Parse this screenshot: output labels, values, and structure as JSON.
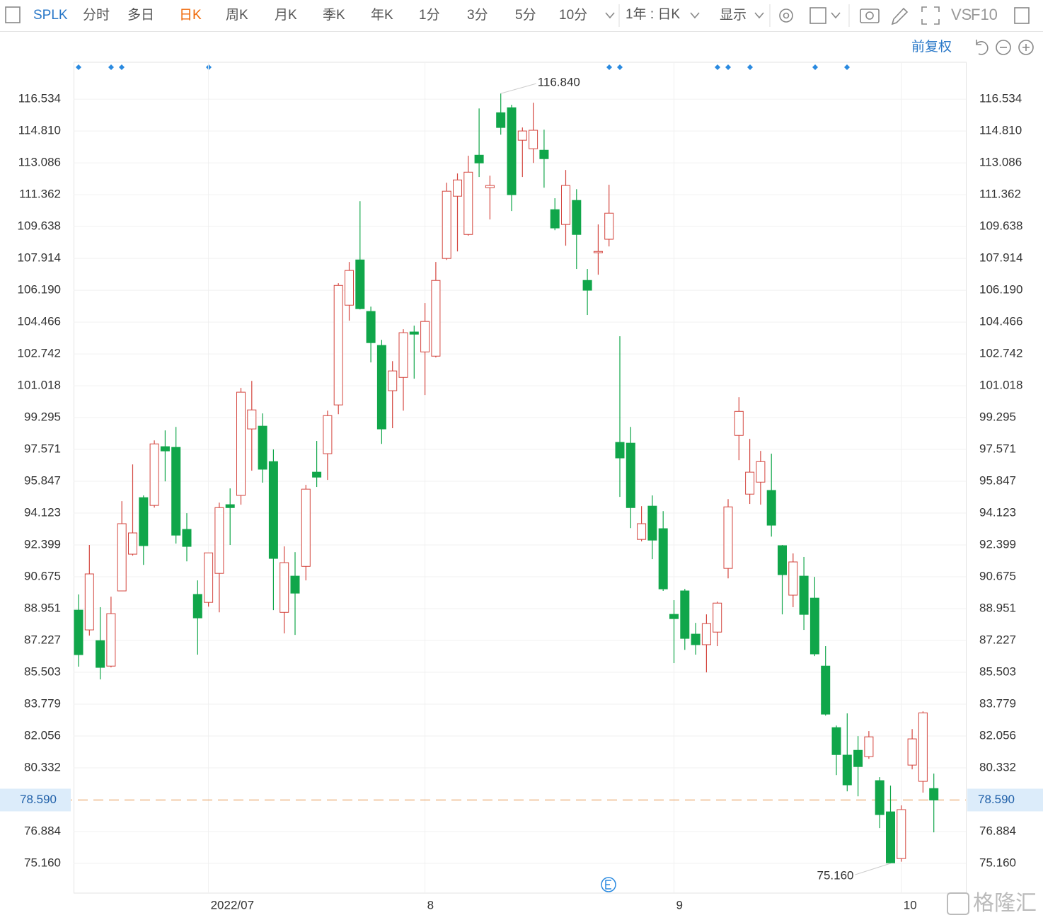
{
  "toolbar": {
    "symbol": "SPLK",
    "periods": [
      "分时",
      "多日",
      "日K",
      "周K",
      "月K",
      "季K",
      "年K",
      "1分",
      "3分",
      "5分",
      "10分"
    ],
    "range_select": "1年 : 日K",
    "display": "显示",
    "compare": "VS",
    "f10": "F10",
    "adjust": "前复权"
  },
  "watermark": "格隆汇",
  "chart_data": {
    "type": "candlestick",
    "categories": [
      null,
      null,
      null,
      null,
      null,
      null,
      null,
      null,
      null,
      null,
      null,
      null,
      "2022/07",
      null,
      null,
      null,
      null,
      null,
      null,
      null,
      null,
      null,
      null,
      null,
      null,
      null,
      null,
      null,
      null,
      null,
      null,
      null,
      "8",
      null,
      null,
      null,
      null,
      null,
      null,
      null,
      null,
      null,
      null,
      null,
      null,
      null,
      null,
      null,
      null,
      null,
      null,
      null,
      null,
      null,
      null,
      "9",
      null,
      null,
      null,
      null,
      null,
      null,
      null,
      null,
      null,
      null,
      null,
      null,
      null,
      null,
      null,
      null,
      null,
      null,
      null,
      null,
      "10",
      null,
      null,
      null
    ],
    "open": [
      88.87,
      87.8,
      87.22,
      85.84,
      89.91,
      91.9,
      94.96,
      94.54,
      97.72,
      97.68,
      93.24,
      89.72,
      89.29,
      90.86,
      94.58,
      95.08,
      98.68,
      98.83,
      96.91,
      88.75,
      90.71,
      91.24,
      96.34,
      97.34,
      99.98,
      105.38,
      107.83,
      105.04,
      103.2,
      100.75,
      101.47,
      103.93,
      102.85,
      102.62,
      107.91,
      111.28,
      109.21,
      113.5,
      111.74,
      115.8,
      116.07,
      114.31,
      113.85,
      113.77,
      110.55,
      109.75,
      111.05,
      106.72,
      108.22,
      108.95,
      97.95,
      97.91,
      92.7,
      94.5,
      93.28,
      88.64,
      89.91,
      87.57,
      87.0,
      87.68,
      91.13,
      98.33,
      95.15,
      95.8,
      95.35,
      92.36,
      89.68,
      90.71,
      89.52,
      85.84,
      82.51,
      81.02,
      81.28,
      80.94,
      79.64,
      77.95,
      75.42,
      80.48,
      79.6,
      79.21
    ],
    "high": [
      89.72,
      92.4,
      89.03,
      89.6,
      94.77,
      96.76,
      95.08,
      98.06,
      98.6,
      98.79,
      94.12,
      90.48,
      91.97,
      94.69,
      95.46,
      100.9,
      101.28,
      99.52,
      97.57,
      92.32,
      92.01,
      95.65,
      98.03,
      99.67,
      106.57,
      107.72,
      111.01,
      105.3,
      103.5,
      102.35,
      104.08,
      104.27,
      105.5,
      107.72,
      112.01,
      112.51,
      113.47,
      116.03,
      112.39,
      116.84,
      116.23,
      115.0,
      116.34,
      114.88,
      111.17,
      112.7,
      111.66,
      107.34,
      109.75,
      111.9,
      103.7,
      98.79,
      94.5,
      95.08,
      94.23,
      89.41,
      90.02,
      88.18,
      88.64,
      89.33,
      94.88,
      100.4,
      98.14,
      97.49,
      97.34,
      92.4,
      91.94,
      91.75,
      90.67,
      86.92,
      82.62,
      83.28,
      82.05,
      82.32,
      79.83,
      79.37,
      78.3,
      82.43,
      83.39,
      80.02
    ],
    "low": [
      85.81,
      87.49,
      85.12,
      85.77,
      89.9,
      91.82,
      91.32,
      94.42,
      95.84,
      92.47,
      91.51,
      86.46,
      89.06,
      88.75,
      92.4,
      94.58,
      96.42,
      95.77,
      88.87,
      87.61,
      87.53,
      90.48,
      95.54,
      95.92,
      99.48,
      104.54,
      105.15,
      102.28,
      97.87,
      98.72,
      99.67,
      101.4,
      100.52,
      102.55,
      107.83,
      108.29,
      109.14,
      112.32,
      110.02,
      114.61,
      110.48,
      112.32,
      113.08,
      111.74,
      109.44,
      108.6,
      107.34,
      104.85,
      107.03,
      108.56,
      95.0,
      93.31,
      92.59,
      91.63,
      89.91,
      86.0,
      86.72,
      86.46,
      85.5,
      86.92,
      90.59,
      96.99,
      94.62,
      94.58,
      92.85,
      88.64,
      89.03,
      87.8,
      86.38,
      83.16,
      79.94,
      79.06,
      78.79,
      80.82,
      77.07,
      75.16,
      75.25,
      80.25,
      78.99,
      76.84
    ],
    "close": [
      86.46,
      90.83,
      85.77,
      88.68,
      93.55,
      93.05,
      92.36,
      97.87,
      97.49,
      92.93,
      92.32,
      88.45,
      91.97,
      94.42,
      94.42,
      100.67,
      99.71,
      96.5,
      91.67,
      91.44,
      89.79,
      95.42,
      96.07,
      99.4,
      106.45,
      107.26,
      105.19,
      103.35,
      98.68,
      101.82,
      103.89,
      103.81,
      104.5,
      106.72,
      111.55,
      112.16,
      112.58,
      113.08,
      111.86,
      115.0,
      111.36,
      114.81,
      114.85,
      113.31,
      109.56,
      111.86,
      109.21,
      106.19,
      108.29,
      110.36,
      97.11,
      94.42,
      93.55,
      92.66,
      90.02,
      88.41,
      87.34,
      87.0,
      88.14,
      89.25,
      94.46,
      99.63,
      96.34,
      96.91,
      93.47,
      90.79,
      91.48,
      88.64,
      86.5,
      83.24,
      81.05,
      79.41,
      80.4,
      82.01,
      77.8,
      75.19,
      78.07,
      81.9,
      83.31,
      78.59
    ],
    "up_color": "#d4463f",
    "down_color": "#10a64a",
    "ylim": [
      73.55,
      118.53
    ],
    "yticks": [
      116.534,
      {
        "value": 114.81,
        "label": "114.810"
      },
      113.086,
      111.362,
      109.638,
      107.914,
      {
        "value": 106.19,
        "label": "106.190"
      },
      104.466,
      102.742,
      101.018,
      99.295,
      97.571,
      95.847,
      94.123,
      92.399,
      90.675,
      88.951,
      87.227,
      85.503,
      83.779,
      82.056,
      80.332,
      76.884,
      {
        "value": 75.16,
        "label": "75.160"
      }
    ],
    "grid": true,
    "high_label": "116.840",
    "low_label": "75.160",
    "last_price": {
      "value": 78.59,
      "label": "78.590"
    }
  }
}
